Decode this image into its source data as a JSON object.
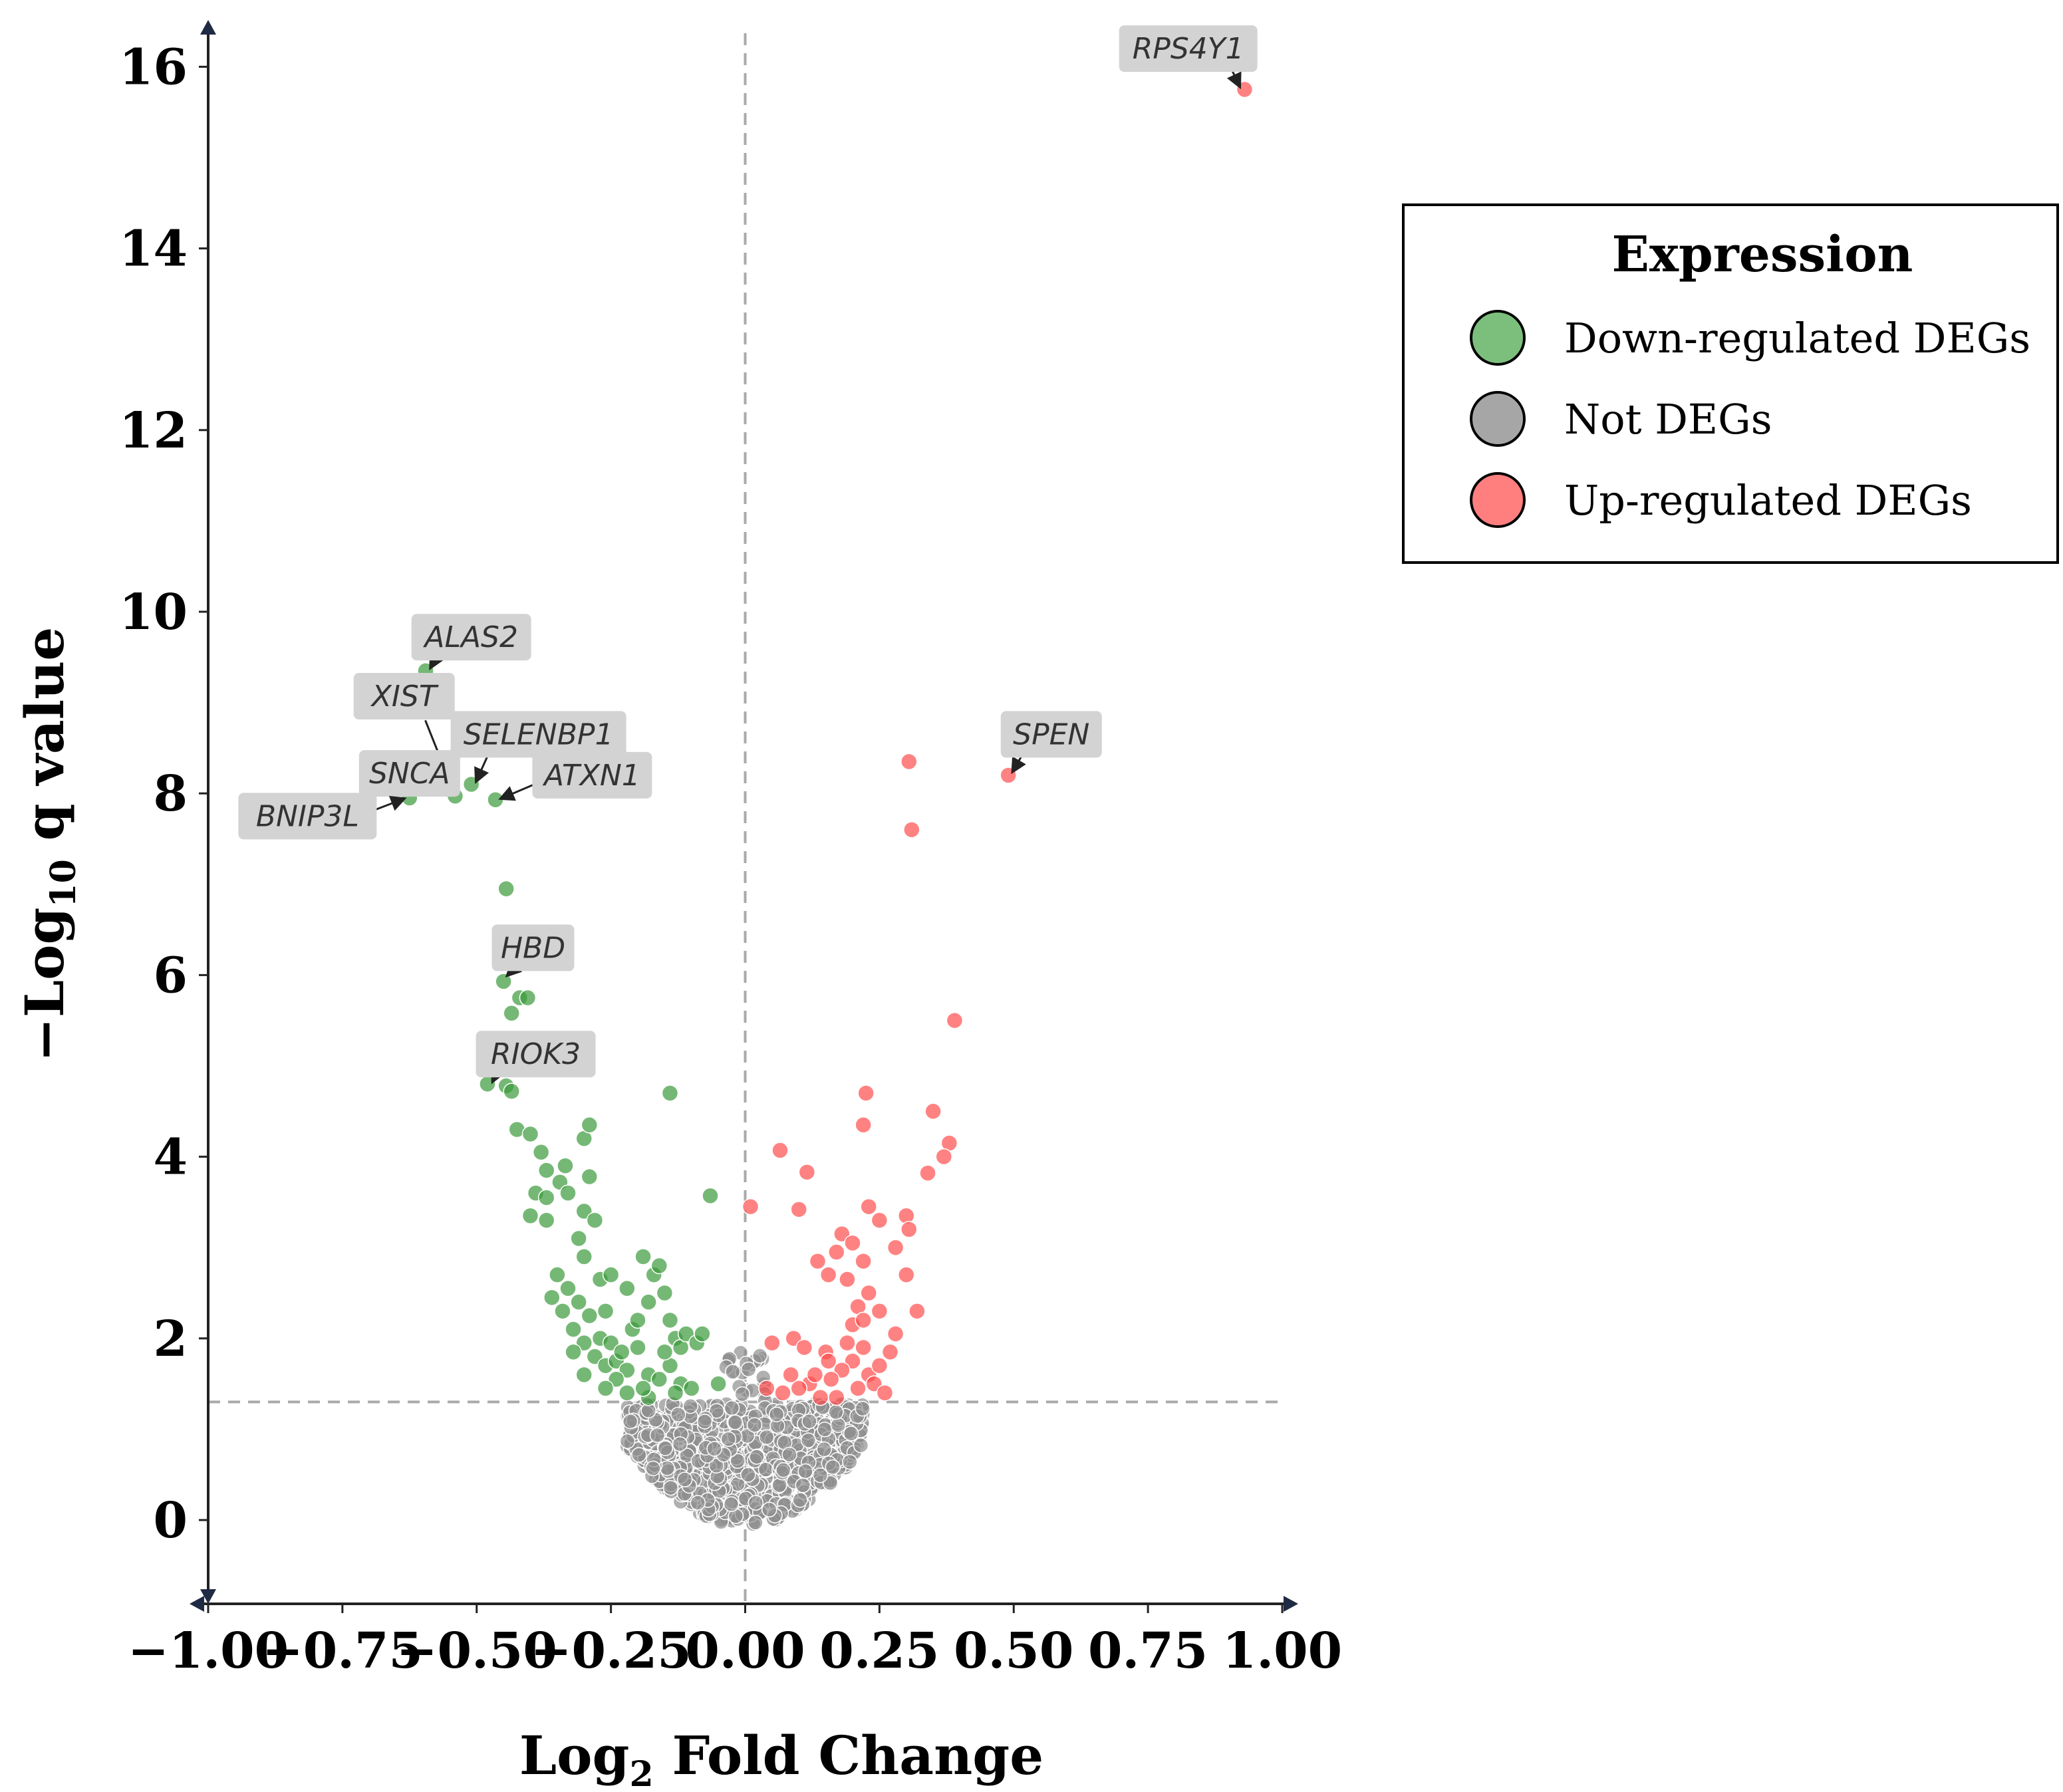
{
  "chart_data": {
    "type": "scatter",
    "subtype": "volcano",
    "xlabel": "Log2 Fold Change",
    "ylabel": "-Log10 q value",
    "xlabel_parts": {
      "pre": "Log",
      "sub": "2",
      "post": " Fold Change"
    },
    "ylabel_parts": {
      "pre": "−Log",
      "sub": "10",
      "post": " q value"
    },
    "xlim": [
      -1.0,
      1.0
    ],
    "ylim": [
      -0.85,
      16.5
    ],
    "x_ticks": [
      -1.0,
      -0.75,
      -0.5,
      -0.25,
      0.0,
      0.25,
      0.5,
      0.75,
      1.0
    ],
    "x_tick_labels": [
      "−1.00",
      "−0.75",
      "−0.50",
      "−0.25",
      "0.00",
      "0.25",
      "0.50",
      "0.75",
      "1.00"
    ],
    "y_ticks": [
      0,
      2,
      4,
      6,
      8,
      10,
      12,
      14,
      16
    ],
    "y_tick_labels": [
      "0",
      "2",
      "4",
      "6",
      "8",
      "10",
      "12",
      "14",
      "16"
    ],
    "reference_lines": {
      "vertical_x": 0.0,
      "horizontal_y": 1.3
    },
    "grid": false,
    "legend": {
      "title": "Expression",
      "position": "right",
      "entries": [
        {
          "label": "Down-regulated DEGs",
          "color": "#7cbf7c"
        },
        {
          "label": "Not DEGs",
          "color": "#a6a6a6"
        },
        {
          "label": "Up-regulated DEGs",
          "color": "#ff7f7f"
        }
      ]
    },
    "colors": {
      "down": "#3a9a3a",
      "not": "#8f8f8f",
      "up": "#ff4d4d"
    },
    "annotations": [
      {
        "gene": "RPS4Y1",
        "x": 0.93,
        "y": 15.75,
        "label_x": 0.825,
        "label_y": 16.2
      },
      {
        "gene": "SPEN",
        "x": 0.49,
        "y": 8.2,
        "label_x": 0.57,
        "label_y": 8.65
      },
      {
        "gene": "ALAS2",
        "x": -0.595,
        "y": 9.35,
        "label_x": -0.51,
        "label_y": 9.72
      },
      {
        "gene": "XIST",
        "x": -0.54,
        "y": 8.0,
        "label_x": -0.635,
        "label_y": 9.07
      },
      {
        "gene": "SELENBP1",
        "x": -0.51,
        "y": 8.1,
        "label_x": -0.385,
        "label_y": 8.65
      },
      {
        "gene": "SNCA",
        "x": -0.55,
        "y": 8.05,
        "label_x": -0.625,
        "label_y": 8.22
      },
      {
        "gene": "ATXN1",
        "x": -0.465,
        "y": 7.93,
        "label_x": -0.285,
        "label_y": 8.2
      },
      {
        "gene": "BNIP3L",
        "x": -0.625,
        "y": 7.95,
        "label_x": -0.815,
        "label_y": 7.75
      },
      {
        "gene": "HBD",
        "x": -0.45,
        "y": 5.95,
        "label_x": -0.395,
        "label_y": 6.3
      },
      {
        "gene": "RIOK3",
        "x": -0.48,
        "y": 4.8,
        "label_x": -0.39,
        "label_y": 5.13
      }
    ],
    "series": [
      {
        "name": "Down-regulated DEGs",
        "points": [
          [
            -0.625,
            7.95
          ],
          [
            -0.595,
            9.35
          ],
          [
            -0.55,
            8.05
          ],
          [
            -0.54,
            7.97
          ],
          [
            -0.51,
            8.1
          ],
          [
            -0.465,
            7.93
          ],
          [
            -0.445,
            6.95
          ],
          [
            -0.45,
            5.93
          ],
          [
            -0.435,
            5.58
          ],
          [
            -0.42,
            5.75
          ],
          [
            -0.405,
            5.75
          ],
          [
            -0.48,
            4.8
          ],
          [
            -0.445,
            4.78
          ],
          [
            -0.435,
            4.72
          ],
          [
            -0.425,
            4.3
          ],
          [
            -0.4,
            4.25
          ],
          [
            -0.38,
            4.05
          ],
          [
            -0.37,
            3.85
          ],
          [
            -0.39,
            3.6
          ],
          [
            -0.37,
            3.55
          ],
          [
            -0.4,
            3.35
          ],
          [
            -0.37,
            3.3
          ],
          [
            -0.345,
            3.72
          ],
          [
            -0.335,
            3.9
          ],
          [
            -0.3,
            4.2
          ],
          [
            -0.29,
            3.78
          ],
          [
            -0.33,
            3.6
          ],
          [
            -0.3,
            3.4
          ],
          [
            -0.28,
            3.3
          ],
          [
            -0.29,
            4.35
          ],
          [
            -0.3,
            2.9
          ],
          [
            -0.35,
            2.7
          ],
          [
            -0.33,
            2.55
          ],
          [
            -0.36,
            2.45
          ],
          [
            -0.31,
            2.4
          ],
          [
            -0.27,
            2.65
          ],
          [
            -0.25,
            2.7
          ],
          [
            -0.26,
            2.3
          ],
          [
            -0.22,
            2.55
          ],
          [
            -0.19,
            2.9
          ],
          [
            -0.17,
            2.7
          ],
          [
            -0.18,
            2.4
          ],
          [
            -0.16,
            2.8
          ],
          [
            -0.15,
            2.5
          ],
          [
            -0.14,
            2.2
          ],
          [
            -0.13,
            2.0
          ],
          [
            -0.12,
            1.9
          ],
          [
            -0.11,
            2.05
          ],
          [
            -0.09,
            1.95
          ],
          [
            -0.08,
            2.05
          ],
          [
            -0.32,
            2.1
          ],
          [
            -0.3,
            1.95
          ],
          [
            -0.28,
            1.8
          ],
          [
            -0.26,
            1.7
          ],
          [
            -0.24,
            1.75
          ],
          [
            -0.22,
            1.65
          ],
          [
            -0.2,
            1.9
          ],
          [
            -0.21,
            2.1
          ],
          [
            -0.18,
            1.6
          ],
          [
            -0.16,
            1.55
          ],
          [
            -0.14,
            1.7
          ],
          [
            -0.12,
            1.5
          ],
          [
            -0.1,
            1.45
          ],
          [
            -0.24,
            1.55
          ],
          [
            -0.26,
            1.45
          ],
          [
            -0.22,
            1.4
          ],
          [
            -0.18,
            1.35
          ],
          [
            -0.3,
            1.6
          ],
          [
            -0.27,
            2.0
          ],
          [
            -0.25,
            1.95
          ],
          [
            -0.23,
            1.85
          ],
          [
            -0.34,
            2.3
          ],
          [
            -0.29,
            2.25
          ],
          [
            -0.2,
            2.2
          ],
          [
            -0.14,
            4.7
          ],
          [
            -0.065,
            3.57
          ],
          [
            -0.05,
            1.5
          ],
          [
            -0.31,
            3.1
          ],
          [
            -0.32,
            1.85
          ],
          [
            -0.19,
            1.45
          ],
          [
            -0.15,
            1.85
          ],
          [
            -0.13,
            1.4
          ]
        ]
      },
      {
        "name": "Up-regulated DEGs",
        "points": [
          [
            0.93,
            15.75
          ],
          [
            0.49,
            8.2
          ],
          [
            0.305,
            8.35
          ],
          [
            0.31,
            7.6
          ],
          [
            0.39,
            5.5
          ],
          [
            0.225,
            4.7
          ],
          [
            0.35,
            4.5
          ],
          [
            0.22,
            4.35
          ],
          [
            0.38,
            4.15
          ],
          [
            0.065,
            4.07
          ],
          [
            0.37,
            4.0
          ],
          [
            0.115,
            3.83
          ],
          [
            0.34,
            3.82
          ],
          [
            0.01,
            3.45
          ],
          [
            0.1,
            3.42
          ],
          [
            0.23,
            3.45
          ],
          [
            0.25,
            3.3
          ],
          [
            0.3,
            3.35
          ],
          [
            0.305,
            3.2
          ],
          [
            0.28,
            3.0
          ],
          [
            0.18,
            3.15
          ],
          [
            0.2,
            3.05
          ],
          [
            0.17,
            2.95
          ],
          [
            0.22,
            2.85
          ],
          [
            0.135,
            2.85
          ],
          [
            0.155,
            2.7
          ],
          [
            0.19,
            2.65
          ],
          [
            0.23,
            2.5
          ],
          [
            0.3,
            2.7
          ],
          [
            0.21,
            2.35
          ],
          [
            0.25,
            2.3
          ],
          [
            0.32,
            2.3
          ],
          [
            0.2,
            2.15
          ],
          [
            0.22,
            2.2
          ],
          [
            0.09,
            2.0
          ],
          [
            0.05,
            1.95
          ],
          [
            0.11,
            1.9
          ],
          [
            0.15,
            1.85
          ],
          [
            0.27,
            1.85
          ],
          [
            0.2,
            1.75
          ],
          [
            0.18,
            1.65
          ],
          [
            0.23,
            1.6
          ],
          [
            0.16,
            1.55
          ],
          [
            0.12,
            1.5
          ],
          [
            0.1,
            1.45
          ],
          [
            0.21,
            1.45
          ],
          [
            0.24,
            1.5
          ],
          [
            0.04,
            1.45
          ],
          [
            0.07,
            1.4
          ],
          [
            0.14,
            1.35
          ],
          [
            0.17,
            1.35
          ],
          [
            0.26,
            1.4
          ],
          [
            0.13,
            1.6
          ],
          [
            0.22,
            1.9
          ],
          [
            0.28,
            2.05
          ],
          [
            0.19,
            1.95
          ],
          [
            0.25,
            1.7
          ],
          [
            0.155,
            1.75
          ],
          [
            0.085,
            1.6
          ]
        ]
      }
    ]
  }
}
